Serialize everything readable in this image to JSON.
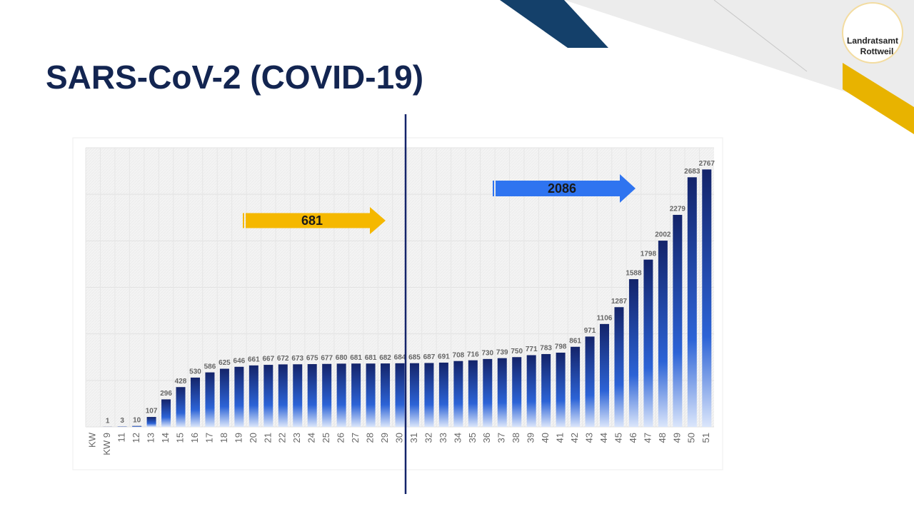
{
  "chart_data": {
    "type": "bar",
    "title": "SARS-CoV-2 (COVID-19)",
    "logo": {
      "line1": "Landratsamt",
      "line2": "Rottweil"
    },
    "categories": [
      "KW",
      "KW 9",
      "11",
      "12",
      "13",
      "14",
      "15",
      "16",
      "17",
      "18",
      "19",
      "20",
      "21",
      "22",
      "23",
      "24",
      "25",
      "26",
      "27",
      "28",
      "29",
      "30",
      "31",
      "32",
      "33",
      "34",
      "35",
      "36",
      "37",
      "38",
      "39",
      "40",
      "41",
      "42",
      "43",
      "44",
      "45",
      "46",
      "47",
      "48",
      "49",
      "50",
      "51"
    ],
    "values": [
      null,
      1,
      3,
      10,
      107,
      296,
      428,
      530,
      586,
      625,
      646,
      661,
      667,
      672,
      673,
      675,
      677,
      680,
      681,
      681,
      682,
      684,
      685,
      687,
      691,
      708,
      716,
      730,
      739,
      750,
      771,
      783,
      798,
      861,
      971,
      1106,
      1287,
      1588,
      1798,
      2002,
      2279,
      2683,
      2767
    ],
    "ylim": [
      0,
      3000
    ],
    "yticks": [
      0,
      500,
      1000,
      1500,
      2000,
      2500,
      3000
    ],
    "grid": true,
    "annotations": [
      {
        "text": "681",
        "color": "#f5b800"
      },
      {
        "text": "2086",
        "color": "#2f74f0"
      }
    ]
  }
}
